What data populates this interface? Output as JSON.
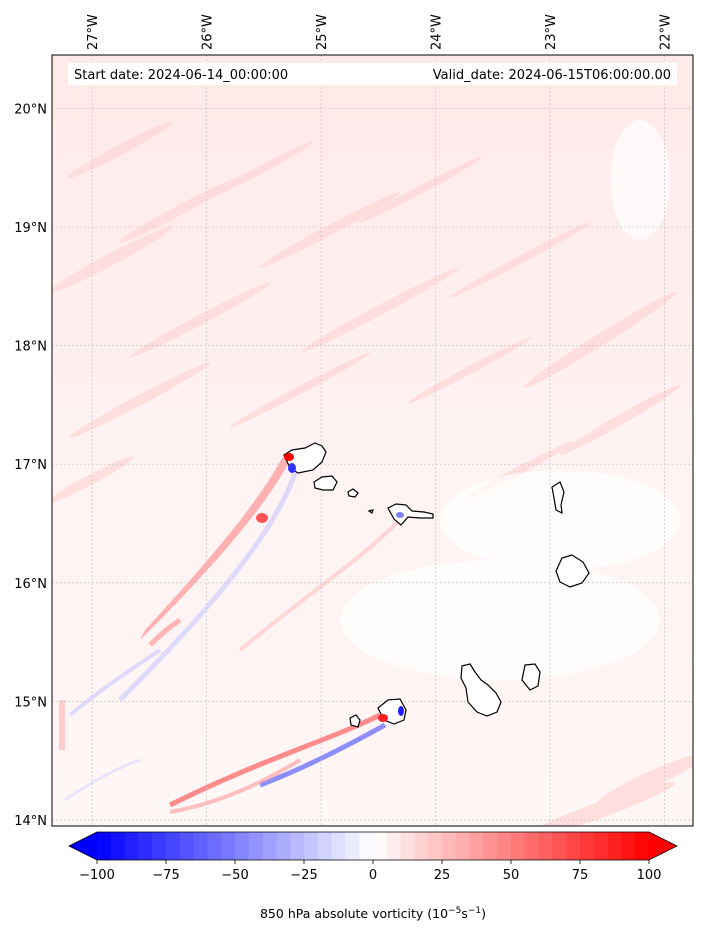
{
  "map": {
    "start_date": "Start date: 2024-06-14_00:00:00",
    "valid_date": "Valid_date: 2024-06-15T06:00:00.00",
    "lon_labels": [
      "27°W",
      "26°W",
      "25°W",
      "24°W",
      "23°W",
      "22°W"
    ],
    "lat_labels": [
      "20°N",
      "19°N",
      "18°N",
      "17°N",
      "16°N",
      "15°N",
      "14°N"
    ],
    "lon_values": [
      -27,
      -26,
      -25,
      -24,
      -23,
      -22
    ],
    "lat_values": [
      20,
      19,
      18,
      17,
      16,
      15,
      14
    ],
    "extent": {
      "lon_min": -27.35,
      "lon_max": -21.75,
      "lat_min": 13.95,
      "lat_max": 20.45
    }
  },
  "colorbar": {
    "label": "850 hPa absolute vorticity (10",
    "label_exp1": "−5",
    "label_mid": "s",
    "label_exp2": "−1",
    "label_end": ")",
    "tick_labels": [
      "−100",
      "−75",
      "−50",
      "−25",
      "0",
      "25",
      "50",
      "75",
      "100"
    ],
    "ticks": [
      -100,
      -75,
      -50,
      -25,
      0,
      25,
      50,
      75,
      100
    ],
    "min": -100,
    "max": 100,
    "neg_color": "#0000ff",
    "pos_color": "#ff0000"
  }
}
